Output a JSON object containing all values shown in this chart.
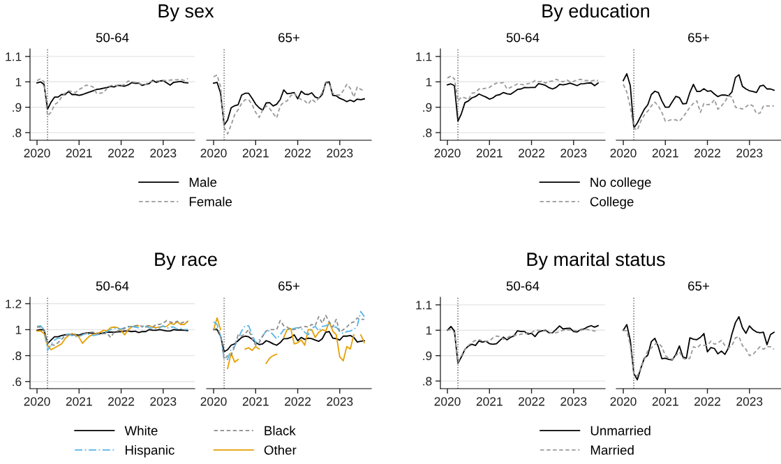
{
  "chart_data": [
    {
      "type": "line",
      "title": "By sex",
      "subtitle": "50-64",
      "legend": "bottom",
      "grid": "y",
      "xlim": [
        "2019-11",
        "2023-10"
      ],
      "xticks": [
        "2020",
        "2021",
        "2022",
        "2023"
      ],
      "ylim": [
        0.77,
        1.13
      ],
      "yticks": [
        {
          "value": 0.8,
          "label": ".8"
        },
        {
          "value": 0.9,
          "label": ".9"
        },
        1,
        1.1
      ],
      "ref_lines": [
        {
          "axis": "x",
          "value": "2020-04",
          "line_style": "dotted",
          "color": "#555555"
        }
      ],
      "x": [
        "2020-01",
        "2020-02",
        "2020-03",
        "2020-04",
        "2020-05",
        "2020-06",
        "2020-07",
        "2020-08",
        "2020-09",
        "2020-10",
        "2020-11",
        "2020-12",
        "2021-01",
        "2021-02",
        "2021-03",
        "2021-04",
        "2021-05",
        "2021-06",
        "2021-07",
        "2021-08",
        "2021-09",
        "2021-10",
        "2021-11",
        "2021-12",
        "2022-01",
        "2022-02",
        "2022-03",
        "2022-04",
        "2022-05",
        "2022-06",
        "2022-07",
        "2022-08",
        "2022-09",
        "2022-10",
        "2022-11",
        "2022-12",
        "2023-01",
        "2023-02",
        "2023-03",
        "2023-04",
        "2023-05",
        "2023-06",
        "2023-07",
        "2023-08"
      ],
      "series": [
        {
          "name": "Male",
          "color": "#000000",
          "line_style": "solid",
          "values": [
            0.996,
            1.0,
            0.99,
            0.892,
            0.92,
            0.94,
            0.94,
            0.95,
            0.95,
            0.962,
            0.95,
            0.95,
            0.947,
            0.95,
            0.955,
            0.96,
            0.965,
            0.97,
            0.972,
            0.975,
            0.978,
            0.982,
            0.98,
            0.986,
            0.985,
            0.983,
            0.988,
            0.997,
            0.994,
            0.995,
            0.986,
            0.99,
            0.993,
            1.006,
            0.998,
            1.003,
            1.005,
            0.996,
            0.987,
            0.998,
            1.0,
            1.002,
            0.997,
            0.996
          ]
        },
        {
          "name": "Female",
          "color": "#999999",
          "line_style": "dashed",
          "values": [
            1.005,
            1.012,
            1.0,
            0.866,
            0.88,
            0.91,
            0.92,
            0.94,
            0.955,
            0.965,
            0.962,
            0.958,
            0.97,
            0.977,
            0.987,
            0.985,
            0.98,
            0.955,
            0.955,
            0.958,
            0.975,
            0.985,
            0.988,
            0.984,
            0.985,
            0.99,
            1.003,
            1.0,
            0.998,
            0.993,
            0.99,
            0.99,
            1.0,
            1.002,
            1.003,
            1.004,
            1.005,
            1.005,
            1.007,
            1.008,
            1.008,
            1.01,
            1.005,
            1.013
          ]
        }
      ]
    },
    {
      "type": "line",
      "subtitle": "65+",
      "grid": "y",
      "tick_labels": "x",
      "xlim": [
        "2019-11",
        "2023-10"
      ],
      "xticks": [
        "2020",
        "2021",
        "2022",
        "2023"
      ],
      "ylim": [
        0.77,
        1.13
      ],
      "ref_lines": [
        {
          "axis": "x",
          "value": "2020-04",
          "line_style": "dotted",
          "color": "#555555"
        }
      ],
      "x": [
        "2020-01",
        "2020-02",
        "2020-03",
        "2020-04",
        "2020-05",
        "2020-06",
        "2020-07",
        "2020-08",
        "2020-09",
        "2020-10",
        "2020-11",
        "2020-12",
        "2021-01",
        "2021-02",
        "2021-03",
        "2021-04",
        "2021-05",
        "2021-06",
        "2021-07",
        "2021-08",
        "2021-09",
        "2021-10",
        "2021-11",
        "2021-12",
        "2022-01",
        "2022-02",
        "2022-03",
        "2022-04",
        "2022-05",
        "2022-06",
        "2022-07",
        "2022-08",
        "2022-09",
        "2022-10",
        "2022-11",
        "2022-12",
        "2023-01",
        "2023-02",
        "2023-03",
        "2023-04",
        "2023-05",
        "2023-06",
        "2023-07",
        "2023-08"
      ],
      "series": [
        {
          "color": "#000000",
          "line_style": "solid",
          "values": [
            0.995,
            0.998,
            0.955,
            0.83,
            0.85,
            0.898,
            0.906,
            0.91,
            0.948,
            0.955,
            0.955,
            0.935,
            0.912,
            0.898,
            0.888,
            0.917,
            0.918,
            0.905,
            0.912,
            0.93,
            0.968,
            0.953,
            0.955,
            0.958,
            0.933,
            0.963,
            0.952,
            0.95,
            0.957,
            0.94,
            0.935,
            0.95,
            0.997,
            1.0,
            0.947,
            0.945,
            0.935,
            0.93,
            0.922,
            0.928,
            0.922,
            0.932,
            0.93,
            0.933
          ]
        },
        {
          "color": "#999999",
          "line_style": "dashed",
          "values": [
            1.02,
            1.027,
            0.98,
            0.82,
            0.795,
            0.83,
            0.87,
            0.89,
            0.915,
            0.93,
            0.93,
            0.91,
            0.88,
            0.86,
            0.89,
            0.905,
            0.895,
            0.875,
            0.858,
            0.905,
            0.92,
            0.925,
            0.945,
            0.955,
            0.94,
            0.93,
            0.925,
            0.912,
            0.932,
            0.92,
            0.935,
            0.958,
            0.995,
            0.995,
            0.955,
            0.948,
            0.948,
            0.965,
            0.99,
            0.975,
            0.94,
            0.98,
            0.97,
            0.965
          ]
        }
      ]
    },
    {
      "type": "line",
      "title": "By education",
      "subtitle": "50-64",
      "legend": "bottom",
      "grid": "y",
      "xlim": [
        "2019-11",
        "2023-10"
      ],
      "xticks": [
        "2020",
        "2021",
        "2022",
        "2023"
      ],
      "ylim": [
        0.77,
        1.13
      ],
      "yticks": [
        {
          "value": 0.8,
          "label": ".8"
        },
        {
          "value": 0.9,
          "label": ".9"
        },
        1,
        1.1
      ],
      "ref_lines": [
        {
          "axis": "x",
          "value": "2020-04",
          "line_style": "dotted",
          "color": "#555555"
        }
      ],
      "x": [
        "2020-01",
        "2020-02",
        "2020-03",
        "2020-04",
        "2020-05",
        "2020-06",
        "2020-07",
        "2020-08",
        "2020-09",
        "2020-10",
        "2020-11",
        "2020-12",
        "2021-01",
        "2021-02",
        "2021-03",
        "2021-04",
        "2021-05",
        "2021-06",
        "2021-07",
        "2021-08",
        "2021-09",
        "2021-10",
        "2021-11",
        "2021-12",
        "2022-01",
        "2022-02",
        "2022-03",
        "2022-04",
        "2022-05",
        "2022-06",
        "2022-07",
        "2022-08",
        "2022-09",
        "2022-10",
        "2022-11",
        "2022-12",
        "2023-01",
        "2023-02",
        "2023-03",
        "2023-04",
        "2023-05",
        "2023-06",
        "2023-07",
        "2023-08"
      ],
      "series": [
        {
          "name": "No college",
          "color": "#000000",
          "line_style": "solid",
          "values": [
            0.988,
            0.992,
            0.985,
            0.845,
            0.875,
            0.918,
            0.925,
            0.937,
            0.942,
            0.952,
            0.946,
            0.94,
            0.932,
            0.937,
            0.947,
            0.95,
            0.958,
            0.953,
            0.951,
            0.96,
            0.97,
            0.972,
            0.978,
            0.977,
            0.978,
            0.978,
            0.993,
            0.99,
            0.986,
            0.977,
            0.972,
            0.978,
            0.99,
            0.988,
            0.991,
            0.995,
            0.99,
            0.985,
            0.992,
            0.993,
            0.995,
            0.996,
            0.985,
            0.995
          ]
        },
        {
          "name": "College",
          "color": "#999999",
          "line_style": "dashed",
          "values": [
            1.015,
            1.023,
            1.012,
            0.925,
            0.94,
            0.937,
            0.93,
            0.955,
            0.958,
            0.972,
            0.972,
            0.975,
            0.978,
            0.988,
            0.995,
            0.995,
            0.997,
            0.972,
            0.978,
            0.985,
            0.992,
            0.99,
            0.988,
            0.993,
            0.995,
            1.005,
            1.0,
            1.003,
            0.995,
            1.002,
            1.003,
            1.01,
            1.005,
            1.0,
            1.008,
            1.0,
            1.002,
            1.008,
            1.01,
            1.005,
            1.005,
            1.003,
            1.007,
            1.005
          ]
        }
      ]
    },
    {
      "type": "line",
      "subtitle": "65+",
      "grid": "y",
      "tick_labels": "x",
      "xlim": [
        "2019-11",
        "2023-10"
      ],
      "xticks": [
        "2020",
        "2021",
        "2022",
        "2023"
      ],
      "ylim": [
        0.77,
        1.13
      ],
      "ref_lines": [
        {
          "axis": "x",
          "value": "2020-04",
          "line_style": "dotted",
          "color": "#555555"
        }
      ],
      "x": [
        "2020-01",
        "2020-02",
        "2020-03",
        "2020-04",
        "2020-05",
        "2020-06",
        "2020-07",
        "2020-08",
        "2020-09",
        "2020-10",
        "2020-11",
        "2020-12",
        "2021-01",
        "2021-02",
        "2021-03",
        "2021-04",
        "2021-05",
        "2021-06",
        "2021-07",
        "2021-08",
        "2021-09",
        "2021-10",
        "2021-11",
        "2021-12",
        "2022-01",
        "2022-02",
        "2022-03",
        "2022-04",
        "2022-05",
        "2022-06",
        "2022-07",
        "2022-08",
        "2022-09",
        "2022-10",
        "2022-11",
        "2022-12",
        "2023-01",
        "2023-02",
        "2023-03",
        "2023-04",
        "2023-05",
        "2023-06",
        "2023-07",
        "2023-08"
      ],
      "series": [
        {
          "color": "#000000",
          "line_style": "solid",
          "values": [
            1.005,
            1.032,
            0.985,
            0.818,
            0.838,
            0.865,
            0.892,
            0.91,
            0.95,
            0.963,
            0.958,
            0.925,
            0.9,
            0.9,
            0.922,
            0.943,
            0.938,
            0.913,
            0.915,
            0.958,
            0.99,
            0.962,
            0.963,
            0.973,
            0.963,
            0.965,
            0.952,
            0.942,
            0.948,
            0.948,
            0.945,
            0.96,
            1.017,
            1.028,
            0.982,
            0.972,
            0.965,
            0.962,
            0.958,
            0.983,
            0.987,
            0.972,
            0.972,
            0.967
          ]
        },
        {
          "color": "#999999",
          "line_style": "dashed",
          "values": [
            0.99,
            0.96,
            0.9,
            0.818,
            0.81,
            0.845,
            0.87,
            0.885,
            0.905,
            0.92,
            0.905,
            0.88,
            0.845,
            0.848,
            0.852,
            0.85,
            0.845,
            0.86,
            0.88,
            0.9,
            0.915,
            0.925,
            0.88,
            0.915,
            0.91,
            0.912,
            0.93,
            0.892,
            0.905,
            0.922,
            0.945,
            0.94,
            0.9,
            0.897,
            0.893,
            0.902,
            0.912,
            0.905,
            0.875,
            0.877,
            0.905,
            0.905,
            0.905,
            0.905
          ]
        }
      ]
    },
    {
      "type": "line",
      "title": "By race",
      "subtitle": "50-64",
      "legend": "bottom",
      "grid": "y",
      "xlim": [
        "2019-11",
        "2023-10"
      ],
      "xticks": [
        "2020",
        "2021",
        "2022",
        "2023"
      ],
      "ylim": [
        0.545,
        1.25
      ],
      "yticks": [
        {
          "value": 0.6,
          "label": ".6"
        },
        {
          "value": 0.8,
          "label": ".8"
        },
        1,
        1.2
      ],
      "ref_lines": [
        {
          "axis": "x",
          "value": "2020-04",
          "line_style": "dotted",
          "color": "#555555"
        }
      ],
      "x": [
        "2020-01",
        "2020-02",
        "2020-03",
        "2020-04",
        "2020-05",
        "2020-06",
        "2020-07",
        "2020-08",
        "2020-09",
        "2020-10",
        "2020-11",
        "2020-12",
        "2021-01",
        "2021-02",
        "2021-03",
        "2021-04",
        "2021-05",
        "2021-06",
        "2021-07",
        "2021-08",
        "2021-09",
        "2021-10",
        "2021-11",
        "2021-12",
        "2022-01",
        "2022-02",
        "2022-03",
        "2022-04",
        "2022-05",
        "2022-06",
        "2022-07",
        "2022-08",
        "2022-09",
        "2022-10",
        "2022-11",
        "2022-12",
        "2023-01",
        "2023-02",
        "2023-03",
        "2023-04",
        "2023-05",
        "2023-06",
        "2023-07",
        "2023-08"
      ],
      "series": [
        {
          "name": "White",
          "color": "#000000",
          "line_style": "solid",
          "values": [
            0.995,
            1.0,
            0.998,
            0.892,
            0.92,
            0.945,
            0.945,
            0.955,
            0.96,
            0.963,
            0.96,
            0.962,
            0.957,
            0.968,
            0.975,
            0.975,
            0.972,
            0.967,
            0.97,
            0.975,
            0.98,
            0.982,
            0.98,
            0.983,
            0.985,
            0.99,
            0.99,
            0.985,
            0.988,
            0.978,
            0.985,
            0.985,
            1.0,
            0.995,
            0.995,
            1.0,
            0.995,
            0.99,
            0.99,
            1.0,
            0.997,
            0.997,
            0.995,
            0.993
          ]
        },
        {
          "name": "Hispanic",
          "color": "#56b4e9",
          "line_style": "dashdot",
          "values": [
            1.025,
            1.03,
            1.0,
            0.84,
            0.885,
            0.92,
            0.935,
            0.935,
            0.96,
            0.965,
            0.955,
            0.945,
            0.95,
            0.96,
            0.975,
            0.96,
            0.955,
            0.96,
            0.965,
            0.972,
            0.985,
            1.0,
            1.01,
            1.01,
            1.005,
            1.015,
            1.02,
            1.025,
            1.02,
            1.015,
            1.02,
            1.025,
            1.015,
            1.01,
            1.01,
            1.015,
            1.03,
            1.01,
            1.02,
            1.02,
            1.005,
            1.01,
            1.0,
            1.0
          ]
        },
        {
          "name": "Black",
          "color": "#8c8c8c",
          "line_style": "dashed",
          "values": [
            1.02,
            1.02,
            1.0,
            0.9,
            0.885,
            0.88,
            0.9,
            0.925,
            0.95,
            0.96,
            0.965,
            0.955,
            0.95,
            0.96,
            0.97,
            0.98,
            0.98,
            0.975,
            0.96,
            0.97,
            0.97,
            0.94,
            0.98,
            0.99,
            1.0,
            1.01,
            1.025,
            1.025,
            1.03,
            1.035,
            1.025,
            1.03,
            1.03,
            1.02,
            1.04,
            1.04,
            1.05,
            1.07,
            1.06,
            1.05,
            1.065,
            1.05,
            1.06,
            1.06
          ]
        },
        {
          "name": "Other",
          "color": "#e69f00",
          "line_style": "solid",
          "values": [
            0.99,
            0.99,
            0.97,
            0.88,
            0.845,
            0.86,
            0.875,
            0.89,
            0.93,
            0.955,
            0.97,
            0.96,
            0.94,
            0.895,
            0.925,
            0.95,
            0.965,
            0.97,
            0.98,
            0.995,
            0.99,
            1.015,
            1.02,
            1.015,
            0.995,
            0.96,
            1.0,
            1.02,
            1.03,
            1.03,
            null,
            1.02,
            1.03,
            1.02,
            1.015,
            1.02,
            1.025,
            1.025,
            1.05,
            1.04,
            1.06,
            1.04,
            1.04,
            1.065
          ]
        }
      ]
    },
    {
      "type": "line",
      "subtitle": "65+",
      "grid": "y",
      "tick_labels": "x",
      "xlim": [
        "2019-11",
        "2023-10"
      ],
      "xticks": [
        "2020",
        "2021",
        "2022",
        "2023"
      ],
      "ylim": [
        0.545,
        1.25
      ],
      "ref_lines": [
        {
          "axis": "x",
          "value": "2020-04",
          "line_style": "dotted",
          "color": "#555555"
        }
      ],
      "x": [
        "2020-01",
        "2020-02",
        "2020-03",
        "2020-04",
        "2020-05",
        "2020-06",
        "2020-07",
        "2020-08",
        "2020-09",
        "2020-10",
        "2020-11",
        "2020-12",
        "2021-01",
        "2021-02",
        "2021-03",
        "2021-04",
        "2021-05",
        "2021-06",
        "2021-07",
        "2021-08",
        "2021-09",
        "2021-10",
        "2021-11",
        "2021-12",
        "2022-01",
        "2022-02",
        "2022-03",
        "2022-04",
        "2022-05",
        "2022-06",
        "2022-07",
        "2022-08",
        "2022-09",
        "2022-10",
        "2022-11",
        "2022-12",
        "2023-01",
        "2023-02",
        "2023-03",
        "2023-04",
        "2023-05",
        "2023-06",
        "2023-07",
        "2023-08"
      ],
      "series": [
        {
          "color": "#000000",
          "line_style": "solid",
          "values": [
            1.0,
            1.0,
            0.95,
            0.83,
            0.845,
            0.88,
            0.89,
            0.915,
            0.94,
            0.95,
            0.945,
            0.925,
            0.9,
            0.885,
            0.89,
            0.915,
            0.905,
            0.89,
            0.88,
            0.9,
            0.93,
            0.93,
            0.94,
            0.96,
            0.915,
            0.94,
            0.925,
            0.935,
            0.93,
            0.92,
            0.91,
            0.93,
            0.98,
            0.985,
            0.935,
            0.93,
            0.92,
            0.95,
            0.95,
            0.955,
            0.94,
            0.905,
            0.91,
            0.915
          ]
        },
        {
          "color": "#56b4e9",
          "line_style": "dashdot",
          "values": [
            1.06,
            1.04,
            0.95,
            0.78,
            0.77,
            0.85,
            0.87,
            0.93,
            0.99,
            1.03,
            1.03,
            0.96,
            0.9,
            0.92,
            0.95,
            0.99,
            0.99,
            0.96,
            0.93,
            0.96,
            1.0,
            1.0,
            1.0,
            1.01,
            1.015,
            1.01,
            0.98,
            0.96,
            1.01,
            1.025,
            0.99,
            1.025,
            1.03,
            1.04,
            1.02,
            1.02,
            0.985,
            0.97,
            0.985,
            0.99,
            1.0,
            1.03,
            1.14,
            1.1
          ]
        },
        {
          "color": "#8c8c8c",
          "line_style": "dashed",
          "values": [
            1.0,
            1.01,
            0.96,
            0.77,
            0.8,
            0.8,
            0.87,
            0.96,
            0.95,
            0.97,
            1.0,
            0.93,
            0.88,
            0.9,
            0.95,
            0.99,
            1.0,
            1.0,
            1.0,
            1.07,
            1.03,
            1.02,
            1.0,
            1.0,
            1.01,
            1.02,
            1.025,
            1.02,
            1.04,
            1.03,
            1.1,
            1.05,
            1.11,
            1.06,
            1.02,
            1.08,
            0.98,
            1.0,
            1.02,
            1.05,
            1.06,
            1.09,
            1.08,
            1.08
          ]
        },
        {
          "color": "#e69f00",
          "line_style": "solid",
          "values": [
            1.0,
            1.09,
            1.0,
            null,
            0.7,
            0.82,
            0.75,
            0.77,
            null,
            0.85,
            0.86,
            0.84,
            0.87,
            0.85,
            null,
            0.74,
            0.78,
            0.8,
            0.81,
            null,
            0.94,
            1.0,
            1.01,
            0.89,
            0.9,
            0.92,
            0.88,
            1.0,
            1.0,
            0.94,
            0.98,
            1.0,
            0.99,
            1.06,
            0.99,
            0.96,
            0.79,
            0.76,
            0.87,
            0.85,
            0.96,
            null,
            0.96,
            0.9
          ]
        }
      ]
    },
    {
      "type": "line",
      "title": "By marital status",
      "subtitle": "50-64",
      "legend": "bottom",
      "grid": "y",
      "xlim": [
        "2019-11",
        "2023-10"
      ],
      "xticks": [
        "2020",
        "2021",
        "2022",
        "2023"
      ],
      "ylim": [
        0.77,
        1.13
      ],
      "yticks": [
        {
          "value": 0.8,
          "label": ".8"
        },
        {
          "value": 0.9,
          "label": ".9"
        },
        1,
        1.1
      ],
      "ref_lines": [
        {
          "axis": "x",
          "value": "2020-04",
          "line_style": "dotted",
          "color": "#555555"
        }
      ],
      "x": [
        "2020-01",
        "2020-02",
        "2020-03",
        "2020-04",
        "2020-05",
        "2020-06",
        "2020-07",
        "2020-08",
        "2020-09",
        "2020-10",
        "2020-11",
        "2020-12",
        "2021-01",
        "2021-02",
        "2021-03",
        "2021-04",
        "2021-05",
        "2021-06",
        "2021-07",
        "2021-08",
        "2021-09",
        "2021-10",
        "2021-11",
        "2021-12",
        "2022-01",
        "2022-02",
        "2022-03",
        "2022-04",
        "2022-05",
        "2022-06",
        "2022-07",
        "2022-08",
        "2022-09",
        "2022-10",
        "2022-11",
        "2022-12",
        "2023-01",
        "2023-02",
        "2023-03",
        "2023-04",
        "2023-05",
        "2023-06",
        "2023-07",
        "2023-08"
      ],
      "series": [
        {
          "name": "Unmarried",
          "color": "#000000",
          "line_style": "solid",
          "values": [
            1.0,
            1.015,
            0.997,
            0.87,
            0.895,
            0.925,
            0.938,
            0.945,
            0.94,
            0.958,
            0.953,
            0.957,
            0.947,
            0.945,
            0.947,
            0.96,
            0.973,
            0.962,
            0.972,
            0.978,
            0.998,
            0.995,
            0.995,
            0.985,
            0.988,
            0.975,
            0.993,
            0.998,
            1.0,
            0.99,
            0.99,
            1.003,
            1.017,
            1.005,
            1.007,
            1.008,
            0.995,
            0.993,
            1.002,
            1.005,
            1.013,
            1.018,
            1.012,
            1.018
          ]
        },
        {
          "name": "Married",
          "color": "#999999",
          "line_style": "dashed",
          "values": [
            1.0,
            1.003,
            0.99,
            0.875,
            0.9,
            0.925,
            0.94,
            0.952,
            0.96,
            0.963,
            0.958,
            0.957,
            0.958,
            0.97,
            0.977,
            0.975,
            0.965,
            0.97,
            0.978,
            0.98,
            0.98,
            0.985,
            0.985,
            0.99,
            0.99,
            1.0,
            1.0,
            0.997,
            0.997,
            0.993,
            0.987,
            0.99,
            0.995,
            1.0,
            1.0,
            1.002,
            1.0,
            0.997,
            1.0,
            1.003,
            1.003,
            1.0,
            0.997,
            0.993
          ]
        }
      ]
    },
    {
      "type": "line",
      "subtitle": "65+",
      "grid": "y",
      "tick_labels": "x",
      "xlim": [
        "2019-11",
        "2023-10"
      ],
      "xticks": [
        "2020",
        "2021",
        "2022",
        "2023"
      ],
      "ylim": [
        0.77,
        1.13
      ],
      "ref_lines": [
        {
          "axis": "x",
          "value": "2020-04",
          "line_style": "dotted",
          "color": "#555555"
        }
      ],
      "x": [
        "2020-01",
        "2020-02",
        "2020-03",
        "2020-04",
        "2020-05",
        "2020-06",
        "2020-07",
        "2020-08",
        "2020-09",
        "2020-10",
        "2020-11",
        "2020-12",
        "2021-01",
        "2021-02",
        "2021-03",
        "2021-04",
        "2021-05",
        "2021-06",
        "2021-07",
        "2021-08",
        "2021-09",
        "2021-10",
        "2021-11",
        "2021-12",
        "2022-01",
        "2022-02",
        "2022-03",
        "2022-04",
        "2022-05",
        "2022-06",
        "2022-07",
        "2022-08",
        "2022-09",
        "2022-10",
        "2022-11",
        "2022-12",
        "2023-01",
        "2023-02",
        "2023-03",
        "2023-04",
        "2023-05",
        "2023-06",
        "2023-07",
        "2023-08"
      ],
      "series": [
        {
          "color": "#000000",
          "line_style": "solid",
          "values": [
            1.0,
            1.022,
            0.96,
            0.83,
            0.805,
            0.85,
            0.89,
            0.902,
            0.955,
            0.968,
            0.935,
            0.888,
            0.89,
            0.885,
            0.883,
            0.905,
            0.938,
            0.895,
            0.89,
            0.97,
            0.965,
            0.963,
            0.972,
            0.987,
            0.915,
            0.932,
            0.928,
            0.907,
            0.918,
            0.905,
            0.93,
            0.985,
            1.03,
            1.053,
            1.01,
            0.988,
            1.017,
            1.002,
            0.993,
            0.99,
            0.992,
            0.943,
            0.983,
            0.992
          ]
        },
        {
          "color": "#999999",
          "line_style": "dashed",
          "values": [
            1.0,
            0.998,
            0.94,
            0.825,
            0.82,
            0.85,
            0.885,
            0.92,
            0.93,
            0.945,
            0.95,
            0.935,
            0.9,
            0.89,
            0.885,
            0.9,
            0.915,
            0.89,
            0.885,
            0.89,
            0.935,
            0.93,
            0.943,
            0.94,
            0.94,
            0.957,
            0.945,
            0.95,
            0.96,
            0.94,
            0.93,
            0.94,
            0.97,
            0.975,
            0.94,
            0.925,
            0.9,
            0.905,
            0.92,
            0.935,
            0.925,
            0.935,
            0.935,
            0.925
          ]
        }
      ]
    }
  ]
}
